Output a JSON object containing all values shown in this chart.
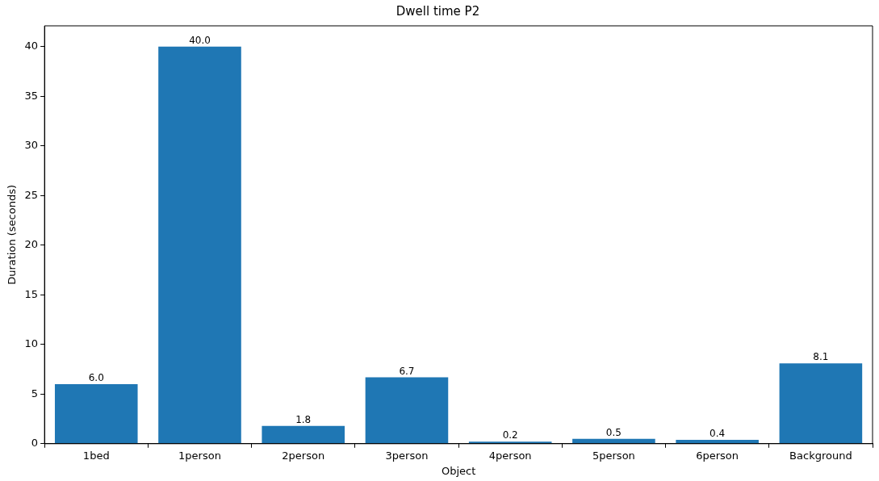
{
  "chart_data": {
    "type": "bar",
    "title": "Dwell time P2",
    "xlabel": "Object",
    "ylabel": "Duration (seconds)",
    "categories": [
      "1bed",
      "1person",
      "2person",
      "3person",
      "4person",
      "5person",
      "6person",
      "Background"
    ],
    "values": [
      6.0,
      40.0,
      1.8,
      6.7,
      0.2,
      0.5,
      0.4,
      8.1
    ],
    "value_labels": [
      "6.0",
      "40.0",
      "1.8",
      "6.7",
      "0.2",
      "0.5",
      "0.4",
      "8.1"
    ],
    "color": "#1f77b4",
    "ylim": [
      0,
      42.1
    ],
    "yticks": [
      0,
      5,
      10,
      15,
      20,
      25,
      30,
      35,
      40
    ]
  }
}
